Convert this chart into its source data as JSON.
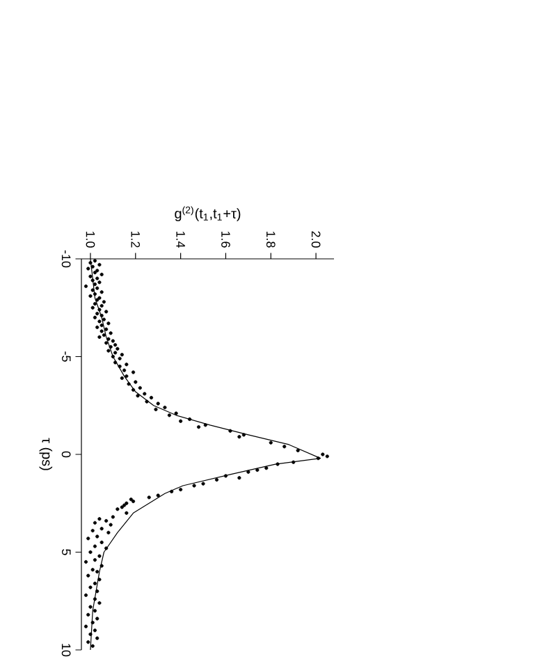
{
  "chart_data": {
    "type": "scatter",
    "xlabel": "g$^{(2)}$(t$_{1}$,t$_{1}$+τ)",
    "ylabel": "τ (ps)",
    "xlim": [
      0.96,
      2.08
    ],
    "ylim": [
      10,
      -10
    ],
    "xticks": [
      {
        "value": 1,
        "label": "1.0"
      },
      1.2,
      1.4,
      1.6,
      1.8,
      {
        "value": 2,
        "label": "2.0"
      }
    ],
    "yticks": [
      -10,
      -5,
      0,
      5,
      10
    ],
    "series": [
      {
        "type": "scatter",
        "marker": "circle",
        "color": "#000000",
        "values": [
          -9.9,
          -9.8,
          -9.7,
          -9.6,
          -9.5,
          -9.4,
          -9.3,
          -9.2,
          -9.1,
          -9.0,
          -8.9,
          -8.8,
          -8.7,
          -8.6,
          -8.5,
          -8.4,
          -8.3,
          -8.2,
          -8.1,
          -8.0,
          -7.9,
          -7.8,
          -7.7,
          -7.6,
          -7.5,
          -7.4,
          -7.3,
          -7.2,
          -7.1,
          -7.0,
          -6.9,
          -6.8,
          -6.7,
          -6.6,
          -6.5,
          -6.4,
          -6.3,
          -6.2,
          -6.1,
          -6.0,
          -5.9,
          -5.8,
          -5.7,
          -5.6,
          -5.5,
          -5.4,
          -5.3,
          -5.2,
          -5.1,
          -5.0,
          -4.9,
          -4.7,
          -4.6,
          -4.5,
          -4.3,
          -4.2,
          -4.0,
          -3.9,
          -3.7,
          -3.6,
          -3.4,
          -3.3,
          -3.1,
          -3.0,
          -2.9,
          -2.7,
          -2.6,
          -2.4,
          -2.3,
          -2.1,
          -2.0,
          -1.8,
          -1.7,
          -1.5,
          -1.4,
          -1.2,
          -1.0,
          -0.9,
          -0.6,
          -0.4,
          -0.2,
          0.0,
          0.1,
          0.2,
          0.4,
          0.5,
          0.7,
          0.8,
          0.9,
          1.1,
          1.2,
          1.3,
          1.5,
          1.6,
          1.8,
          1.9,
          2.1,
          2.2,
          2.3,
          2.4,
          2.5,
          2.6,
          2.7,
          2.8,
          3.0,
          3.2,
          3.3,
          3.4,
          3.5,
          3.6,
          3.8,
          3.9,
          4.0,
          4.2,
          4.3,
          4.5,
          4.7,
          4.8,
          5.0,
          5.2,
          5.4,
          5.5,
          5.7,
          5.9,
          6.0,
          6.2,
          6.4,
          6.6,
          6.8,
          7.0,
          7.2,
          7.4,
          7.6,
          7.8,
          8.0,
          8.2,
          8.4,
          8.6,
          8.8,
          9.0,
          9.2,
          9.4,
          9.6,
          9.8
        ],
        "x": [
          1.02,
          1.0,
          1.04,
          1.01,
          0.99,
          1.03,
          1.02,
          1.05,
          1.0,
          1.03,
          1.01,
          1.04,
          1.02,
          0.98,
          1.03,
          1.01,
          1.05,
          1.02,
          1.0,
          1.04,
          1.03,
          1.06,
          1.02,
          1.05,
          1.01,
          1.04,
          1.07,
          1.03,
          1.05,
          1.02,
          1.06,
          1.04,
          1.08,
          1.05,
          1.03,
          1.07,
          1.05,
          1.09,
          1.06,
          1.04,
          1.08,
          1.1,
          1.07,
          1.11,
          1.09,
          1.12,
          1.08,
          1.11,
          1.14,
          1.1,
          1.13,
          1.11,
          1.16,
          1.13,
          1.15,
          1.19,
          1.16,
          1.14,
          1.2,
          1.17,
          1.22,
          1.19,
          1.24,
          1.21,
          1.27,
          1.25,
          1.3,
          1.33,
          1.29,
          1.38,
          1.35,
          1.44,
          1.4,
          1.51,
          1.48,
          1.62,
          1.68,
          1.66,
          1.8,
          1.86,
          1.92,
          2.03,
          2.05,
          2.01,
          1.9,
          1.83,
          1.78,
          1.74,
          1.7,
          1.6,
          1.66,
          1.56,
          1.5,
          1.46,
          1.4,
          1.36,
          1.3,
          1.26,
          1.18,
          1.19,
          1.16,
          1.15,
          1.14,
          1.12,
          1.16,
          1.1,
          1.04,
          1.07,
          1.02,
          1.09,
          1.05,
          1.01,
          1.08,
          1.03,
          0.99,
          1.05,
          1.02,
          1.07,
          1.0,
          1.04,
          1.02,
          0.98,
          1.05,
          1.01,
          1.03,
          0.99,
          1.04,
          1.02,
          1.0,
          1.03,
          0.98,
          1.02,
          1.04,
          1.0,
          1.02,
          0.99,
          1.03,
          1.01,
          0.98,
          1.02,
          1.0,
          1.03,
          0.99,
          1.01
        ]
      },
      {
        "type": "line",
        "marker": "none",
        "line_style": "solid",
        "color": "#000000",
        "values": [
          -10,
          -8,
          -7,
          -6,
          -5,
          -4,
          -3.2,
          -2.5,
          -2,
          -1.5,
          -1,
          -0.5,
          0.2,
          0.5,
          1,
          1.6,
          2,
          3,
          4,
          5,
          6,
          8,
          10
        ],
        "x": [
          1.0,
          1.02,
          1.05,
          1.07,
          1.1,
          1.15,
          1.2,
          1.28,
          1.38,
          1.53,
          1.7,
          1.88,
          2.02,
          1.82,
          1.63,
          1.41,
          1.33,
          1.19,
          1.12,
          1.06,
          1.04,
          1.01,
          1.0
        ]
      }
    ]
  }
}
